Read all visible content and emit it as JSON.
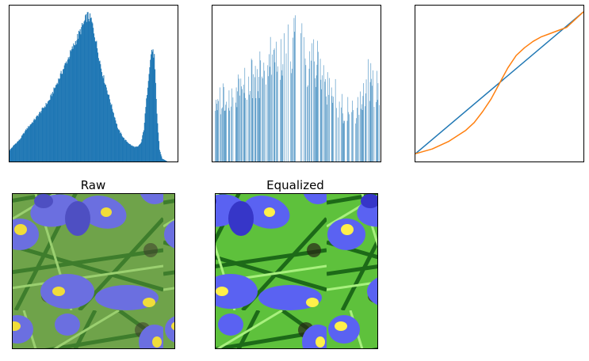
{
  "chart_data": [
    {
      "type": "bar",
      "subtype": "histogram",
      "title": "",
      "xlabel": "",
      "ylabel": "",
      "ticks_shown": false,
      "grid": false,
      "color": "#1f77b4",
      "bins": 256,
      "x_range": [
        0,
        255
      ],
      "profile_x": [
        0,
        4,
        8,
        15,
        25,
        40,
        60,
        80,
        100,
        110,
        118,
        124,
        130,
        140,
        155,
        165,
        175,
        185,
        190,
        195,
        200,
        204,
        208,
        212,
        216,
        220,
        224,
        228,
        232,
        236,
        240,
        244,
        250,
        255
      ],
      "profile_y": [
        0.08,
        0.1,
        0.12,
        0.15,
        0.22,
        0.3,
        0.42,
        0.62,
        0.82,
        0.92,
        1.0,
        0.97,
        0.85,
        0.62,
        0.38,
        0.22,
        0.15,
        0.11,
        0.1,
        0.1,
        0.13,
        0.22,
        0.42,
        0.62,
        0.77,
        0.72,
        0.32,
        0.08,
        0.02,
        0.01,
        0.0,
        0.0,
        0.0,
        0.0
      ]
    },
    {
      "type": "bar",
      "subtype": "histogram",
      "title": "",
      "xlabel": "",
      "ylabel": "",
      "ticks_shown": false,
      "grid": false,
      "color": "#1f77b4",
      "bins": 256,
      "x_range": [
        0,
        255
      ],
      "sparse": true,
      "profile_x": [
        0,
        20,
        40,
        60,
        80,
        100,
        115,
        125,
        140,
        160,
        180,
        200,
        215,
        228,
        240,
        250,
        255
      ],
      "profile_y": [
        0.45,
        0.55,
        0.62,
        0.7,
        0.8,
        0.88,
        0.95,
        1.0,
        0.92,
        0.8,
        0.62,
        0.45,
        0.4,
        0.55,
        0.72,
        0.6,
        0.4
      ]
    },
    {
      "type": "line",
      "title": "",
      "xlabel": "",
      "ylabel": "",
      "ticks_shown": false,
      "grid": false,
      "xlim": [
        0,
        1
      ],
      "ylim": [
        0,
        1
      ],
      "series": [
        {
          "color": "#1f77b4",
          "x": [
            0,
            1
          ],
          "y": [
            0.05,
            0.96
          ]
        },
        {
          "color": "#ff7f0e",
          "x": [
            0,
            0.1,
            0.2,
            0.3,
            0.35,
            0.4,
            0.45,
            0.5,
            0.55,
            0.6,
            0.65,
            0.7,
            0.75,
            0.8,
            0.85,
            0.9,
            0.95,
            1.0
          ],
          "y": [
            0.05,
            0.08,
            0.13,
            0.2,
            0.25,
            0.32,
            0.4,
            0.5,
            0.6,
            0.68,
            0.73,
            0.77,
            0.8,
            0.82,
            0.84,
            0.86,
            0.91,
            0.96
          ]
        }
      ]
    }
  ],
  "images": [
    {
      "title": "Raw"
    },
    {
      "title": "Equalized"
    }
  ]
}
